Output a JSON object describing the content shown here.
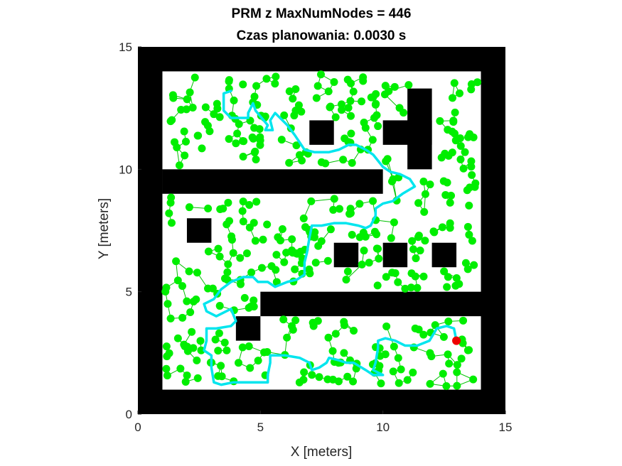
{
  "chart_data": {
    "type": "scatter",
    "title_line1": "PRM z MaxNumNodes = 446",
    "title_line2": "Czas planowania: 0.0030 s",
    "xlabel": "X [meters]",
    "ylabel": "Y [meters]",
    "xlim": [
      0,
      15
    ],
    "ylim": [
      0,
      15
    ],
    "xticks": [
      "0",
      "5",
      "10",
      "15"
    ],
    "yticks": [
      "0",
      "5",
      "10",
      "15"
    ],
    "colors": {
      "obstacle": "#000000",
      "free_space": "#ffffff",
      "node": "#00ee00",
      "edge": "#00c000",
      "path": "#00e5ee",
      "goal": "#ee0000"
    },
    "obstacles": [
      {
        "x0": 0,
        "y0": 0,
        "x1": 15,
        "y1": 1
      },
      {
        "x0": 0,
        "y0": 14,
        "x1": 15,
        "y1": 15
      },
      {
        "x0": 0,
        "y0": 0,
        "x1": 1,
        "y1": 15
      },
      {
        "x0": 14,
        "y0": 0,
        "x1": 15,
        "y1": 15
      },
      {
        "x0": 1,
        "y0": 9,
        "x1": 10,
        "y1": 10
      },
      {
        "x0": 5,
        "y0": 4,
        "x1": 15,
        "y1": 5
      },
      {
        "x0": 2,
        "y0": 7,
        "x1": 3,
        "y1": 8
      },
      {
        "x0": 8,
        "y0": 6,
        "x1": 9,
        "y1": 7
      },
      {
        "x0": 10,
        "y0": 6,
        "x1": 11,
        "y1": 7
      },
      {
        "x0": 12,
        "y0": 6,
        "x1": 13,
        "y1": 7
      },
      {
        "x0": 4,
        "y0": 3,
        "x1": 5,
        "y1": 4
      },
      {
        "x0": 7,
        "y0": 11,
        "x1": 8,
        "y1": 12
      },
      {
        "x0": 10,
        "y0": 11,
        "x1": 12,
        "y1": 12
      },
      {
        "x0": 11,
        "y0": 10,
        "x1": 12,
        "y1": 13.3
      }
    ],
    "path": [
      [
        3.8,
        13.2
      ],
      [
        3.5,
        13.1
      ],
      [
        3.5,
        12.4
      ],
      [
        3.8,
        12.1
      ],
      [
        4.5,
        12.1
      ],
      [
        4.5,
        12.3
      ],
      [
        4.7,
        12.7
      ],
      [
        4.8,
        12.4
      ],
      [
        5.3,
        11.8
      ],
      [
        5.2,
        11.6
      ],
      [
        5.5,
        11.6
      ],
      [
        5.4,
        12.0
      ],
      [
        5.6,
        12.3
      ],
      [
        6.1,
        11.8
      ],
      [
        6.4,
        11.4
      ],
      [
        6.8,
        10.8
      ],
      [
        7.2,
        10.7
      ],
      [
        7.8,
        10.7
      ],
      [
        8.2,
        10.8
      ],
      [
        8.6,
        11.0
      ],
      [
        8.9,
        11.0
      ],
      [
        9.3,
        10.8
      ],
      [
        9.6,
        10.6
      ],
      [
        10.0,
        10.1
      ],
      [
        10.3,
        9.9
      ],
      [
        10.7,
        9.8
      ],
      [
        11.1,
        9.6
      ],
      [
        11.3,
        9.3
      ],
      [
        10.8,
        9.0
      ],
      [
        10.4,
        8.7
      ],
      [
        10.0,
        8.6
      ],
      [
        9.7,
        8.4
      ],
      [
        9.7,
        8.1
      ],
      [
        9.5,
        7.7
      ],
      [
        9.3,
        7.6
      ],
      [
        9.0,
        7.7
      ],
      [
        8.5,
        7.8
      ],
      [
        8.0,
        7.8
      ],
      [
        7.5,
        7.7
      ],
      [
        7.1,
        7.7
      ],
      [
        7.0,
        7.2
      ],
      [
        6.9,
        6.6
      ],
      [
        6.8,
        6.2
      ],
      [
        6.8,
        5.7
      ],
      [
        6.5,
        5.5
      ],
      [
        6.1,
        5.4
      ],
      [
        5.6,
        5.2
      ],
      [
        5.3,
        5.4
      ],
      [
        4.9,
        5.4
      ],
      [
        4.7,
        5.6
      ],
      [
        4.3,
        5.6
      ],
      [
        3.8,
        5.4
      ],
      [
        3.4,
        5.1
      ],
      [
        3.1,
        4.7
      ],
      [
        2.7,
        4.5
      ],
      [
        2.8,
        4.2
      ],
      [
        3.2,
        4.0
      ],
      [
        3.8,
        4.3
      ],
      [
        4.0,
        3.8
      ],
      [
        3.8,
        3.6
      ],
      [
        3.2,
        3.5
      ],
      [
        2.8,
        3.5
      ],
      [
        2.8,
        3.0
      ],
      [
        2.7,
        2.6
      ],
      [
        3.0,
        2.4
      ],
      [
        3.0,
        1.9
      ],
      [
        3.1,
        1.3
      ],
      [
        3.4,
        1.2
      ],
      [
        3.9,
        1.3
      ],
      [
        4.4,
        1.3
      ],
      [
        5.1,
        1.3
      ],
      [
        5.3,
        1.3
      ],
      [
        5.3,
        1.6
      ],
      [
        5.4,
        2.1
      ],
      [
        5.4,
        2.4
      ],
      [
        6.0,
        2.4
      ],
      [
        6.6,
        2.3
      ],
      [
        7.0,
        2.1
      ],
      [
        7.1,
        1.8
      ],
      [
        7.4,
        1.9
      ],
      [
        7.7,
        2.1
      ],
      [
        7.8,
        2.3
      ],
      [
        8.2,
        2.2
      ],
      [
        8.5,
        2.1
      ],
      [
        8.8,
        2.1
      ],
      [
        9.3,
        1.8
      ],
      [
        9.6,
        1.6
      ],
      [
        10.0,
        1.6
      ],
      [
        9.8,
        1.7
      ],
      [
        9.6,
        1.8
      ],
      [
        9.7,
        2.1
      ],
      [
        9.8,
        2.7
      ],
      [
        9.8,
        3.0
      ],
      [
        10.1,
        3.1
      ],
      [
        10.5,
        3.0
      ],
      [
        10.9,
        2.8
      ],
      [
        11.4,
        2.8
      ],
      [
        11.9,
        3.0
      ],
      [
        12.2,
        3.5
      ],
      [
        12.6,
        3.6
      ],
      [
        12.9,
        3.5
      ],
      [
        13.0,
        3.0
      ]
    ],
    "goal": [
      13.0,
      3.0
    ],
    "node_count": 446
  }
}
